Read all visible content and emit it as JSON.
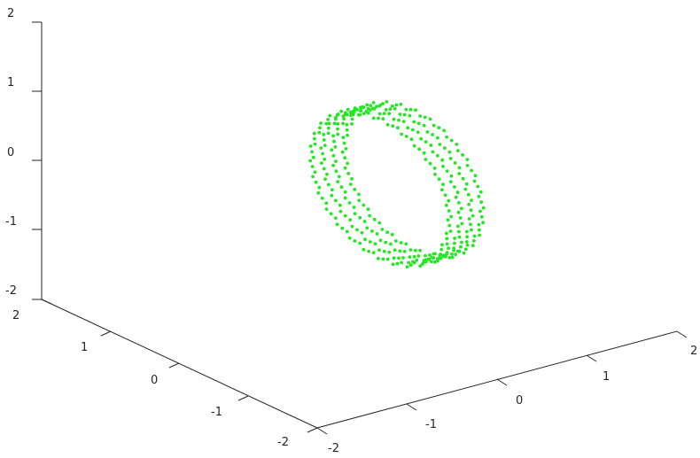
{
  "chart_data": {
    "type": "scatter",
    "projection": "3d",
    "title": "",
    "xlabel": "",
    "ylabel": "",
    "zlabel": "",
    "grid": false,
    "xlim": [
      -2,
      2
    ],
    "ylim": [
      -2,
      2
    ],
    "zlim": [
      -2,
      2
    ],
    "x_ticks": [
      "-2",
      "-1",
      "0",
      "1",
      "2"
    ],
    "y_ticks": [
      "-2",
      "-1",
      "0",
      "1",
      "2"
    ],
    "z_ticks": [
      "-2",
      "-1",
      "0",
      "1",
      "2"
    ],
    "marker_color": "#22e822",
    "marker": "point",
    "series": [
      {
        "shape": "ring",
        "center": [
          0.15,
          -0.35,
          0
        ],
        "radius": 1.0,
        "tube_thickness": 0.12,
        "ring_axis": "approximately along x",
        "rows": 4,
        "points_per_row": 90
      }
    ]
  }
}
